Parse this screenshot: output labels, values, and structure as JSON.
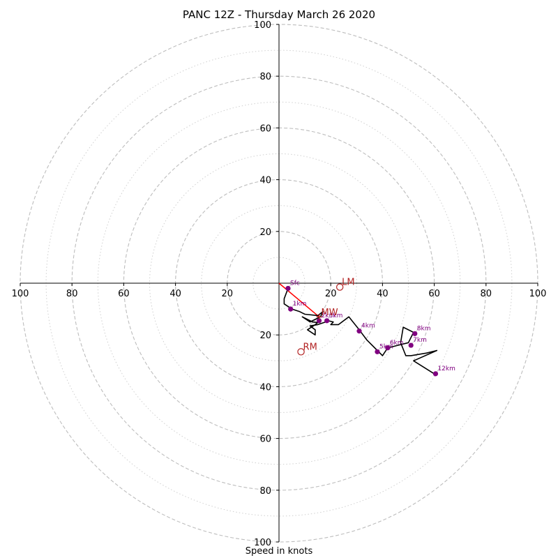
{
  "chart_data": {
    "type": "line",
    "title": "PANC 12Z - Thursday March 26 2020",
    "xlabel": "Speed in knots",
    "ylabel": "",
    "axis_range": [
      -100,
      100
    ],
    "ring_major": [
      20,
      40,
      60,
      80,
      100
    ],
    "ring_minor": [
      10,
      30,
      50,
      70,
      90
    ],
    "ticks_x": [
      "100",
      "80",
      "60",
      "40",
      "20",
      "20",
      "40",
      "60",
      "80",
      "100"
    ],
    "tick_values_x": [
      -100,
      -80,
      -60,
      -40,
      -20,
      20,
      40,
      60,
      80,
      100
    ],
    "ticks_y": [
      "100",
      "80",
      "60",
      "40",
      "20",
      "20",
      "40",
      "60",
      "80",
      "100"
    ],
    "tick_values_y": [
      100,
      80,
      60,
      40,
      20,
      -20,
      -40,
      -60,
      -80,
      -100
    ],
    "hodograph": {
      "color": "#000000",
      "points": [
        [
          3.5,
          -2
        ],
        [
          2,
          -6
        ],
        [
          2,
          -8
        ],
        [
          5,
          -10
        ],
        [
          8,
          -11
        ],
        [
          9,
          -11.5
        ],
        [
          10,
          -12
        ],
        [
          15,
          -12.5
        ],
        [
          17,
          -11
        ],
        [
          16,
          -13
        ],
        [
          14,
          -14
        ],
        [
          12,
          -15
        ],
        [
          9,
          -13
        ],
        [
          13,
          -15
        ],
        [
          15,
          -15.2
        ],
        [
          14,
          -16
        ],
        [
          11,
          -18
        ],
        [
          14,
          -20
        ],
        [
          14,
          -18
        ],
        [
          12,
          -16.5
        ],
        [
          15,
          -16
        ],
        [
          18,
          -15
        ],
        [
          19,
          -14.5
        ],
        [
          21,
          -15
        ],
        [
          20,
          -16
        ],
        [
          23,
          -16
        ],
        [
          27,
          -13
        ],
        [
          31,
          -18
        ],
        [
          34,
          -22
        ],
        [
          38,
          -26
        ],
        [
          40,
          -28
        ],
        [
          42,
          -25
        ],
        [
          46,
          -24
        ],
        [
          50,
          -23
        ],
        [
          51,
          -21
        ],
        [
          52,
          -19
        ],
        [
          48,
          -17
        ],
        [
          47,
          -23
        ],
        [
          49,
          -28
        ],
        [
          51,
          -28
        ],
        [
          57,
          -27
        ],
        [
          61,
          -26
        ],
        [
          52,
          -30
        ],
        [
          60,
          -35
        ]
      ],
      "markers": [
        {
          "label": "Sfc",
          "x": 3.5,
          "y": -2
        },
        {
          "label": "1km",
          "x": 4.5,
          "y": -10
        },
        {
          "label": "2km",
          "x": 15.5,
          "y": -14.5
        },
        {
          "label": "3km",
          "x": 18.5,
          "y": -14.5
        },
        {
          "label": "4km",
          "x": 31,
          "y": -18.5
        },
        {
          "label": "5km",
          "x": 38,
          "y": -26.5
        },
        {
          "label": "6km",
          "x": 42,
          "y": -25
        },
        {
          "label": "7km",
          "x": 51,
          "y": -24
        },
        {
          "label": "8km",
          "x": 52.5,
          "y": -19.5
        },
        {
          "label": "12km",
          "x": 60.5,
          "y": -35
        }
      ],
      "marker_color": "#800080"
    },
    "storm_motion": {
      "color": "#b22222",
      "LM": {
        "label": "LM",
        "x": 23.5,
        "y": -1.5
      },
      "RM": {
        "label": "RM",
        "x": 8.5,
        "y": -26.5
      },
      "MW": {
        "label": "MW",
        "x": 15.5,
        "y": -13
      },
      "shear_vector": {
        "from": [
          0,
          0
        ],
        "to": [
          15.5,
          -13
        ],
        "color": "#ff0000"
      }
    }
  }
}
